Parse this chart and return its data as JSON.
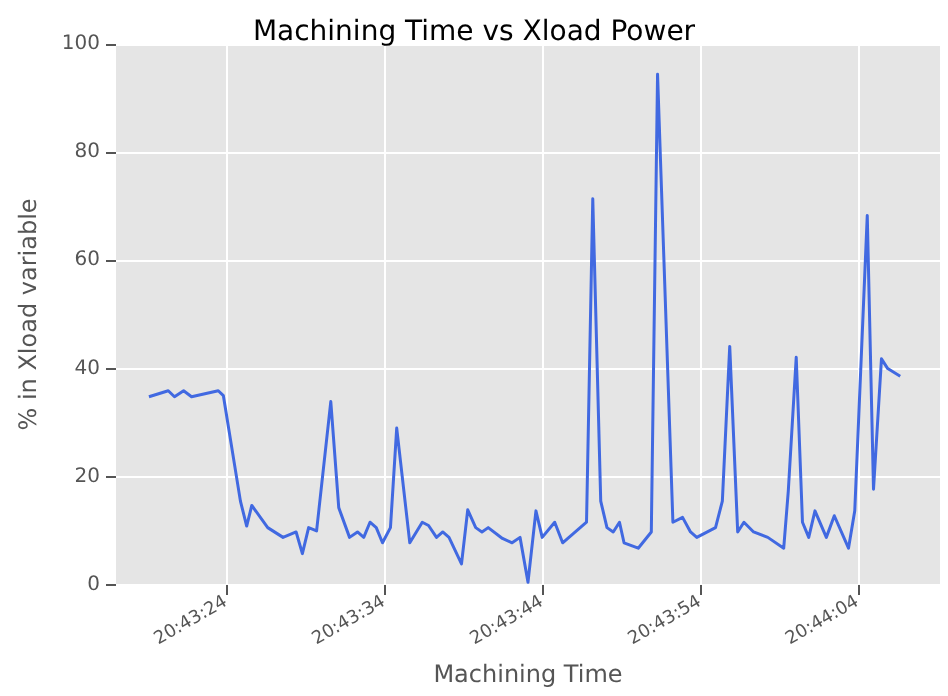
{
  "chart_data": {
    "type": "line",
    "title": "Machining Time vs Xload Power",
    "xlabel": "Machining Time",
    "ylabel": "% in Xload variable",
    "x": [
      20.72197,
      20.72231,
      20.72242,
      20.72258,
      20.72272,
      20.72319,
      20.72328,
      20.72358,
      20.72369,
      20.72378,
      20.72406,
      20.72433,
      20.72456,
      20.72467,
      20.72478,
      20.72492,
      20.72517,
      20.72531,
      20.7255,
      20.72564,
      20.72575,
      20.72586,
      20.72597,
      20.72608,
      20.72622,
      20.72633,
      20.72656,
      20.72678,
      20.72689,
      20.72703,
      20.72714,
      20.72725,
      20.72747,
      20.72758,
      20.72772,
      20.72783,
      20.72794,
      20.72819,
      20.72836,
      20.7285,
      20.72864,
      20.72878,
      20.72889,
      20.72911,
      20.72925,
      20.72967,
      20.72978,
      20.72992,
      20.73003,
      20.73014,
      20.73025,
      20.73033,
      20.73058,
      20.73081,
      20.73092,
      20.73119,
      20.73136,
      20.7315,
      20.73161,
      20.73194,
      20.73206,
      20.73219,
      20.73233,
      20.73244,
      20.73261,
      20.73286,
      20.73314,
      20.73322,
      20.73336,
      20.73347,
      20.73358,
      20.73369,
      20.73389,
      20.73403,
      20.73428,
      20.73439,
      20.73461,
      20.73472,
      20.73486,
      20.73497,
      20.73519
    ],
    "series": [
      {
        "color": "#4169e1",
        "values": [
          34.8,
          35.9,
          34.8,
          35.9,
          34.8,
          35.9,
          35,
          15.5,
          10.9,
          14.7,
          10.6,
          8.8,
          9.8,
          5.8,
          10.6,
          10,
          33.9,
          14.3,
          8.8,
          9.8,
          8.8,
          11.6,
          10.6,
          7.8,
          10.6,
          29,
          7.8,
          11.6,
          11,
          8.8,
          9.8,
          8.8,
          3.9,
          13.9,
          10.6,
          9.8,
          10.6,
          8.6,
          7.8,
          8.8,
          0.5,
          13.7,
          8.8,
          11.6,
          7.8,
          11.6,
          71.4,
          15.5,
          10.6,
          9.8,
          11.6,
          7.8,
          6.8,
          9.8,
          94.4,
          11.6,
          12.5,
          9.8,
          8.8,
          10.6,
          15.5,
          44.1,
          9.8,
          11.6,
          9.8,
          8.8,
          6.8,
          17.3,
          42.1,
          11.6,
          8.8,
          13.7,
          8.8,
          12.8,
          6.8,
          13.7,
          68.3,
          17.7,
          41.8,
          40,
          38.6
        ]
      }
    ],
    "xlim": [
      20.72139,
      20.73589
    ],
    "xticks": [
      {
        "value": 20.72333,
        "label": "20:43:24"
      },
      {
        "value": 20.72611,
        "label": "20:43:34"
      },
      {
        "value": 20.72889,
        "label": "20:43:44"
      },
      {
        "value": 20.73167,
        "label": "20:43:54"
      },
      {
        "value": 20.73444,
        "label": "20:44:04"
      }
    ],
    "ylim": [
      0,
      100
    ],
    "yticks": [
      0,
      20,
      40,
      60,
      80,
      100
    ],
    "grid": true,
    "marker": "none",
    "line_style": "solid"
  }
}
